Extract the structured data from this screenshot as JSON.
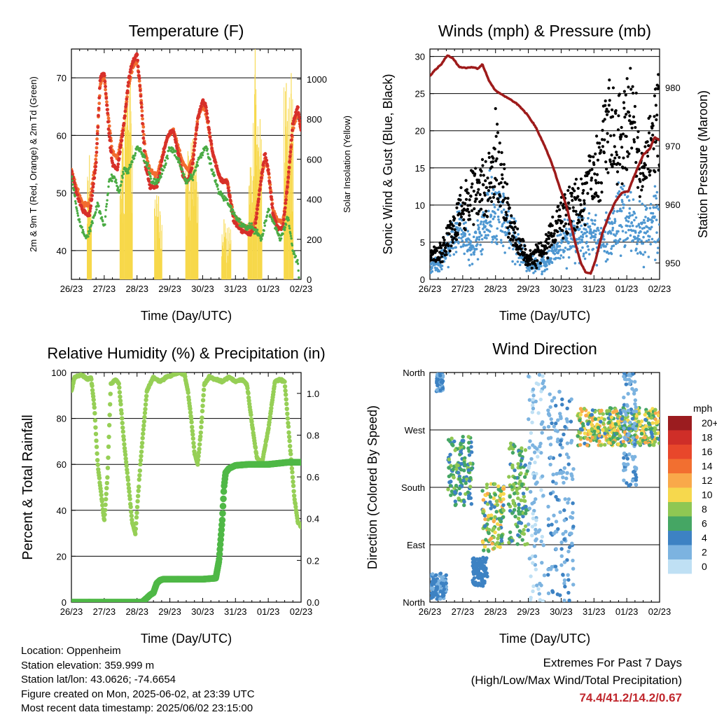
{
  "chart_data": [
    {
      "type": "line",
      "title": "Temperature (F)",
      "xlabel": "Time (Day/UTC)",
      "ylabel": "2m & 9m T (Red, Orange) & 2m Td (Green)",
      "ylabel_right": "Solar Insolation (Yellow)",
      "x_ticks": [
        "26/23",
        "27/23",
        "28/23",
        "29/23",
        "30/23",
        "31/23",
        "01/23",
        "02/23"
      ],
      "ylim": [
        35,
        75
      ],
      "yticks": [
        40,
        50,
        60,
        70
      ],
      "ylim_right": [
        0,
        1150
      ],
      "yticks_right": [
        0,
        200,
        400,
        600,
        800,
        1000
      ],
      "grid": true,
      "series": [
        {
          "name": "2m T",
          "color": "#d7302a",
          "axis": "left",
          "x": [
            0,
            0.15,
            0.35,
            0.55,
            0.75,
            0.88,
            1.0,
            1.15,
            1.25,
            1.4,
            1.6,
            1.75,
            1.88,
            2.0,
            2.1,
            2.25,
            2.4,
            2.6,
            2.8,
            2.95,
            3.1,
            3.25,
            3.4,
            3.55,
            3.7,
            3.85,
            4.0,
            4.1,
            4.3,
            4.5,
            4.6,
            4.75,
            4.95,
            5.1,
            5.3,
            5.45,
            5.6,
            5.75,
            5.9,
            6.0,
            6.15,
            6.3,
            6.45,
            6.6,
            6.75,
            6.9,
            7.0
          ],
          "y": [
            54,
            50,
            47,
            46,
            55,
            70,
            71,
            60,
            55,
            54,
            62,
            70,
            73,
            74,
            68,
            55,
            51,
            51,
            57,
            60,
            61,
            57,
            53,
            52,
            55,
            63,
            66,
            65,
            57,
            53,
            52,
            52,
            45,
            44,
            43,
            43,
            44,
            51,
            57,
            54,
            46,
            44,
            44,
            52,
            62,
            65,
            61
          ]
        },
        {
          "name": "9m T",
          "color": "#f26c2f",
          "axis": "left",
          "x": [
            0,
            0.15,
            0.35,
            0.55,
            0.75,
            0.88,
            1.0,
            1.15,
            1.25,
            1.4,
            1.6,
            1.75,
            1.88,
            2.0,
            2.1,
            2.25,
            2.4,
            2.6,
            2.8,
            2.95,
            3.1,
            3.25,
            3.4,
            3.55,
            3.7,
            3.85,
            4.0,
            4.1,
            4.3,
            4.5,
            4.6,
            4.75,
            4.95,
            5.1,
            5.3,
            5.45,
            5.6,
            5.75,
            5.9,
            6.0,
            6.15,
            6.3,
            6.45,
            6.6,
            6.75,
            6.9,
            7.0
          ],
          "y": [
            54,
            51,
            48,
            48,
            56,
            69,
            70,
            62,
            57,
            56,
            62,
            69,
            72,
            73,
            68,
            57,
            54,
            53,
            57,
            60,
            61,
            58,
            55,
            54,
            56,
            63,
            65,
            64,
            57,
            53,
            52,
            52,
            46,
            45,
            44,
            44,
            45,
            51,
            56,
            54,
            47,
            45,
            45,
            52,
            61,
            64,
            61
          ]
        },
        {
          "name": "2m Td",
          "color": "#4aab44",
          "axis": "left",
          "x": [
            0,
            0.2,
            0.45,
            0.65,
            0.8,
            1.0,
            1.15,
            1.3,
            1.45,
            1.6,
            1.75,
            1.9,
            2.0,
            2.15,
            2.3,
            2.45,
            2.65,
            2.85,
            3.0,
            3.15,
            3.3,
            3.5,
            3.7,
            3.9,
            4.1,
            4.3,
            4.5,
            4.7,
            4.9,
            5.1,
            5.3,
            5.5,
            5.65,
            5.8,
            6.0,
            6.15,
            6.35,
            6.5,
            6.6,
            6.75,
            6.9,
            7.0
          ],
          "y": [
            53,
            46,
            42,
            45,
            48,
            44,
            52,
            53,
            50,
            54,
            54,
            56,
            58,
            57,
            55,
            52,
            52,
            55,
            58,
            57,
            55,
            52,
            53,
            56,
            58,
            54,
            50,
            49,
            47,
            45,
            44,
            44,
            43,
            42,
            47,
            45,
            42,
            44,
            46,
            40,
            38,
            31
          ]
        },
        {
          "name": "Solar Insolation",
          "color": "#f7d84a",
          "axis": "right",
          "peaks": [
            {
              "x": 0.55,
              "y": 620
            },
            {
              "x": 1.55,
              "y": 700
            },
            {
              "x": 1.7,
              "y": 950
            },
            {
              "x": 1.8,
              "y": 1080
            },
            {
              "x": 2.6,
              "y": 420
            },
            {
              "x": 2.7,
              "y": 340
            },
            {
              "x": 3.55,
              "y": 640
            },
            {
              "x": 3.7,
              "y": 700
            },
            {
              "x": 3.8,
              "y": 590
            },
            {
              "x": 4.65,
              "y": 300
            },
            {
              "x": 4.8,
              "y": 260
            },
            {
              "x": 5.45,
              "y": 560
            },
            {
              "x": 5.6,
              "y": 1150
            },
            {
              "x": 5.75,
              "y": 800
            },
            {
              "x": 6.55,
              "y": 980
            },
            {
              "x": 6.7,
              "y": 1030
            }
          ]
        }
      ]
    },
    {
      "type": "scatter",
      "title": "Winds (mph) & Pressure (mb)",
      "xlabel": "Time (Day/UTC)",
      "ylabel": "Sonic Wind & Gust (Blue, Black)",
      "ylabel_right": "Station Pressure (Maroon)",
      "x_ticks": [
        "26/23",
        "27/23",
        "28/23",
        "29/23",
        "30/23",
        "31/23",
        "01/23",
        "02/23"
      ],
      "ylim": [
        0,
        31
      ],
      "yticks": [
        0,
        5,
        10,
        15,
        20,
        25,
        30
      ],
      "ylim_right": [
        947.2,
        986.6
      ],
      "yticks_right": [
        950,
        960,
        970,
        980
      ],
      "grid": true,
      "series": [
        {
          "name": "Station Pressure",
          "type": "line",
          "color": "#9e1b1b",
          "axis": "right",
          "x": [
            0,
            0.15,
            0.35,
            0.5,
            0.55,
            0.7,
            0.9,
            1.1,
            1.3,
            1.45,
            1.6,
            1.8,
            2.0,
            2.2,
            2.45,
            2.7,
            2.95,
            3.2,
            3.5,
            3.75,
            3.95,
            4.15,
            4.3,
            4.45,
            4.6,
            4.75,
            4.9,
            5.05,
            5.25,
            5.45,
            5.65,
            5.85,
            6.05,
            6.2,
            6.35,
            6.5,
            6.7,
            6.85,
            7.0
          ],
          "y": [
            982,
            983,
            984,
            985.3,
            985.5,
            985,
            983.5,
            983.4,
            983.5,
            983.2,
            984,
            981.2,
            979.5,
            978.8,
            978,
            977,
            975.5,
            973.5,
            970,
            966.5,
            963,
            960,
            956.5,
            953,
            950,
            948.4,
            948.2,
            950.5,
            955,
            958,
            960.5,
            962,
            962.3,
            964.5,
            966.5,
            968.5,
            969.5,
            971.5,
            971
          ]
        },
        {
          "name": "Sonic Wind",
          "color": "#4e97d1",
          "axis": "left",
          "summary": [
            [
              0.3,
              2
            ],
            [
              0.9,
              7
            ],
            [
              1.3,
              4
            ],
            [
              1.9,
              10
            ],
            [
              2.5,
              6
            ],
            [
              3.0,
              2
            ],
            [
              3.5,
              2
            ],
            [
              4.0,
              5
            ],
            [
              4.6,
              6
            ],
            [
              5.3,
              5
            ],
            [
              5.9,
              9
            ],
            [
              6.5,
              6
            ],
            [
              6.9,
              9
            ]
          ]
        },
        {
          "name": "Gust",
          "color": "#000000",
          "axis": "left",
          "summary": [
            [
              0.3,
              4
            ],
            [
              0.8,
              9
            ],
            [
              1.0,
              12
            ],
            [
              1.9,
              16
            ],
            [
              2.0,
              21
            ],
            [
              2.5,
              8
            ],
            [
              3.0,
              3
            ],
            [
              3.5,
              5
            ],
            [
              4.0,
              10
            ],
            [
              4.7,
              14
            ],
            [
              5.2,
              19
            ],
            [
              5.4,
              26
            ],
            [
              5.9,
              22
            ],
            [
              6.1,
              29
            ],
            [
              6.5,
              17
            ],
            [
              6.9,
              26
            ]
          ]
        }
      ]
    },
    {
      "type": "line",
      "title": "Relative Humidity (%) & Precipitation (in)",
      "xlabel": "Time (Day/UTC)",
      "ylabel": "Percent & Total Rainfall",
      "x_ticks": [
        "26/23",
        "27/23",
        "28/23",
        "29/23",
        "30/23",
        "31/23",
        "01/23",
        "02/23"
      ],
      "ylim": [
        0,
        100
      ],
      "yticks": [
        0,
        20,
        40,
        60,
        80,
        100
      ],
      "ylim_right": [
        0,
        1.1
      ],
      "yticks_right": [
        0.0,
        0.2,
        0.4,
        0.6,
        0.8,
        1.0
      ],
      "grid": true,
      "series": [
        {
          "name": "Relative Humidity",
          "color": "#96cf56",
          "axis": "left",
          "x": [
            0,
            0.1,
            0.3,
            0.5,
            0.6,
            0.7,
            0.8,
            0.9,
            1.0,
            1.1,
            1.2,
            1.35,
            1.45,
            1.6,
            1.75,
            1.85,
            1.95,
            2.1,
            2.3,
            2.5,
            2.7,
            2.9,
            3.1,
            3.3,
            3.45,
            3.55,
            3.65,
            3.75,
            3.85,
            3.95,
            4.05,
            4.2,
            4.4,
            4.6,
            4.8,
            5.0,
            5.2,
            5.35,
            5.5,
            5.65,
            5.8,
            6.0,
            6.2,
            6.35,
            6.5,
            6.65,
            6.8,
            6.9,
            7.0
          ],
          "y": [
            92,
            98,
            99,
            97,
            98,
            85,
            60,
            48,
            35,
            55,
            95,
            97,
            95,
            70,
            50,
            35,
            30,
            60,
            92,
            98,
            96,
            98,
            99,
            100,
            99,
            92,
            80,
            65,
            60,
            75,
            95,
            98,
            97,
            96,
            98,
            96,
            97,
            95,
            78,
            63,
            60,
            75,
            96,
            97,
            96,
            70,
            45,
            35,
            33
          ]
        },
        {
          "name": "Total Rainfall",
          "color": "#4fb846",
          "axis": "right",
          "x": [
            0,
            2.15,
            2.3,
            2.4,
            2.5,
            2.6,
            2.7,
            2.8,
            3.0,
            3.5,
            4.0,
            4.4,
            4.5,
            4.6,
            4.65,
            4.7,
            4.8,
            5.0,
            5.4,
            5.7,
            6.0,
            6.3,
            6.6,
            7.0
          ],
          "y": [
            0.0,
            0.0,
            0.02,
            0.035,
            0.045,
            0.09,
            0.105,
            0.11,
            0.11,
            0.11,
            0.11,
            0.115,
            0.2,
            0.4,
            0.55,
            0.62,
            0.64,
            0.655,
            0.66,
            0.66,
            0.66,
            0.665,
            0.67,
            0.67
          ]
        }
      ]
    },
    {
      "type": "scatter",
      "title": "Wind Direction",
      "xlabel": "Time (Day/UTC)",
      "ylabel": "Direction (Colored By Speed)",
      "x_ticks": [
        "26/23",
        "27/23",
        "28/23",
        "29/23",
        "30/23",
        "31/23",
        "01/23",
        "02/23"
      ],
      "ylim": [
        0,
        360
      ],
      "yticks": [
        0,
        90,
        180,
        270,
        360
      ],
      "ytick_labels": [
        "North",
        "East",
        "South",
        "West",
        "North"
      ],
      "grid": true,
      "colorbar": {
        "title": "mph",
        "labels": [
          "20+",
          "18",
          "16",
          "14",
          "12",
          "10",
          "8",
          "6",
          "4",
          "2",
          "0"
        ],
        "colors": [
          "#9b1c1f",
          "#cf2e28",
          "#e8472b",
          "#f26f30",
          "#f9a94a",
          "#f6d84d",
          "#8fc753",
          "#45a664",
          "#3d82c3",
          "#7cb3e0",
          "#bfe0f4"
        ]
      },
      "clusters": [
        {
          "x": [
            0.0,
            0.5
          ],
          "dir": [
            5,
            45
          ],
          "speed": [
            2,
            5
          ]
        },
        {
          "x": [
            0.2,
            0.4
          ],
          "dir": [
            330,
            360
          ],
          "speed": [
            2,
            4
          ]
        },
        {
          "x": [
            0.55,
            1.3
          ],
          "dir": [
            150,
            260
          ],
          "speed": [
            3,
            8
          ]
        },
        {
          "x": [
            1.3,
            1.75
          ],
          "dir": [
            25,
            70
          ],
          "speed": [
            3,
            5
          ]
        },
        {
          "x": [
            1.6,
            2.25
          ],
          "dir": [
            80,
            190
          ],
          "speed": [
            4,
            12
          ]
        },
        {
          "x": [
            2.4,
            3.0
          ],
          "dir": [
            90,
            250
          ],
          "speed": [
            4,
            9
          ]
        },
        {
          "x": [
            3.0,
            3.5
          ],
          "dir": [
            0,
            360
          ],
          "speed": [
            0,
            2
          ]
        },
        {
          "x": [
            3.6,
            4.4
          ],
          "dir": [
            0,
            330
          ],
          "speed": [
            1,
            4
          ]
        },
        {
          "x": [
            4.5,
            7.0
          ],
          "dir": [
            245,
            305
          ],
          "speed": [
            4,
            13
          ]
        },
        {
          "x": [
            5.9,
            6.3
          ],
          "dir": [
            180,
            360
          ],
          "speed": [
            1,
            4
          ]
        }
      ]
    }
  ],
  "station": {
    "location": "Location: Oppenheim",
    "elevation": "Station elevation: 359.999 m",
    "latlon": "Station lat/lon: 43.0626; -74.6654",
    "created": "Figure created on Mon, 2025-06-02, at 23:39 UTC",
    "recent": "Most recent data timestamp: 2025/06/02 23:15:00"
  },
  "extremes": {
    "title": "Extremes For Past 7 Days",
    "subtitle": "(High/Low/Max Wind/Total Precipitation)",
    "values": "74.4/41.2/14.2/0.67"
  }
}
